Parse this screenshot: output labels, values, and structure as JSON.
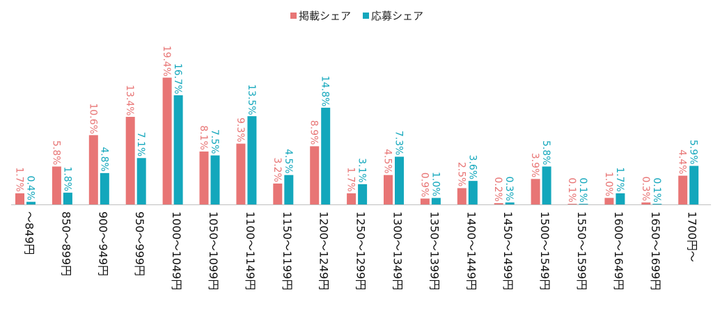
{
  "chart_data": {
    "type": "bar",
    "categories": [
      "～849円",
      "850～899円",
      "900～949円",
      "950～999円",
      "1000～1049円",
      "1050～1099円",
      "1100～1149円",
      "1150～1199円",
      "1200～1249円",
      "1250～1299円",
      "1300～1349円",
      "1350～1399円",
      "1400～1449円",
      "1450～1499円",
      "1500～1549円",
      "1550～1599円",
      "1600～1649円",
      "1650～1699円",
      "1700円～"
    ],
    "series": [
      {
        "name": "掲載シェア",
        "color": "#E87575",
        "values": [
          1.7,
          5.8,
          10.6,
          13.4,
          19.4,
          8.1,
          9.3,
          3.2,
          8.9,
          1.7,
          4.5,
          0.9,
          2.5,
          0.2,
          3.9,
          0.1,
          1.0,
          0.3,
          4.4
        ],
        "labels": [
          "1.7%",
          "5.8%",
          "10.6%",
          "13.4%",
          "19.4%",
          "8.1%",
          "9.3%",
          "3.2%",
          "8.9%",
          "1.7%",
          "4.5%",
          "0.9%",
          "2.5%",
          "0.2%",
          "3.9%",
          "0.1%",
          "1.0%",
          "0.3%",
          "4.4%"
        ]
      },
      {
        "name": "応募シェア",
        "color": "#13A7BC",
        "values": [
          0.4,
          1.8,
          4.8,
          7.1,
          16.7,
          7.5,
          13.5,
          4.5,
          14.8,
          3.1,
          7.3,
          1.0,
          3.6,
          0.3,
          5.8,
          0.1,
          1.7,
          0.1,
          5.9
        ],
        "labels": [
          "0.4%",
          "1.8%",
          "4.8%",
          "7.1%",
          "16.7%",
          "7.5%",
          "13.5%",
          "4.5%",
          "14.8%",
          "3.1%",
          "7.3%",
          "1.0%",
          "3.6%",
          "0.3%",
          "5.8%",
          "0.1%",
          "1.7%",
          "0.1%",
          "5.9%"
        ]
      }
    ],
    "ylim": [
      0,
      20
    ],
    "grid": false,
    "legend_position": "top-center"
  }
}
